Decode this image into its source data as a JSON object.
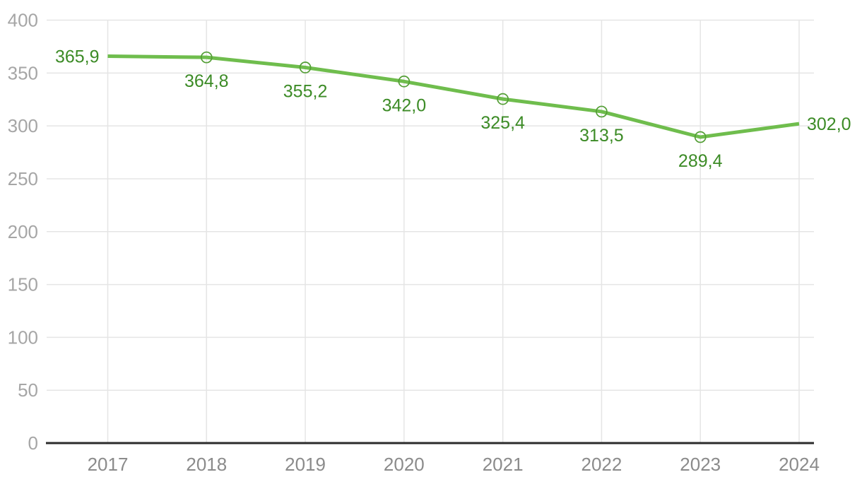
{
  "chart_data": {
    "type": "line",
    "title": "",
    "xlabel": "",
    "ylabel": "",
    "categories": [
      2017,
      2018,
      2019,
      2020,
      2021,
      2022,
      2023,
      2024
    ],
    "values": [
      365.9,
      364.8,
      355.2,
      342.0,
      325.4,
      313.5,
      289.4,
      302.0
    ],
    "value_labels": [
      "365,9",
      "364,8",
      "355,2",
      "342,0",
      "325,4",
      "313,5",
      "289,4",
      "302,0"
    ],
    "ylim": [
      0,
      400
    ],
    "yticks": [
      0,
      50,
      100,
      150,
      200,
      250,
      300,
      350,
      400
    ],
    "grid": true,
    "legend_position": "none",
    "marker_style": "open-circle",
    "markers_on_indices": [
      1,
      2,
      3,
      4,
      5,
      6
    ],
    "decimal_separator": ","
  },
  "colors": {
    "line": "#6fbd4d",
    "marker_stroke": "#539e35",
    "data_label": "#3c8b26",
    "y_tick_label": "#a6a6a6",
    "x_tick_label": "#8b8b8b",
    "gridline": "#e5e5e5",
    "axis_line": "#2b2b2b",
    "background": "#ffffff"
  }
}
